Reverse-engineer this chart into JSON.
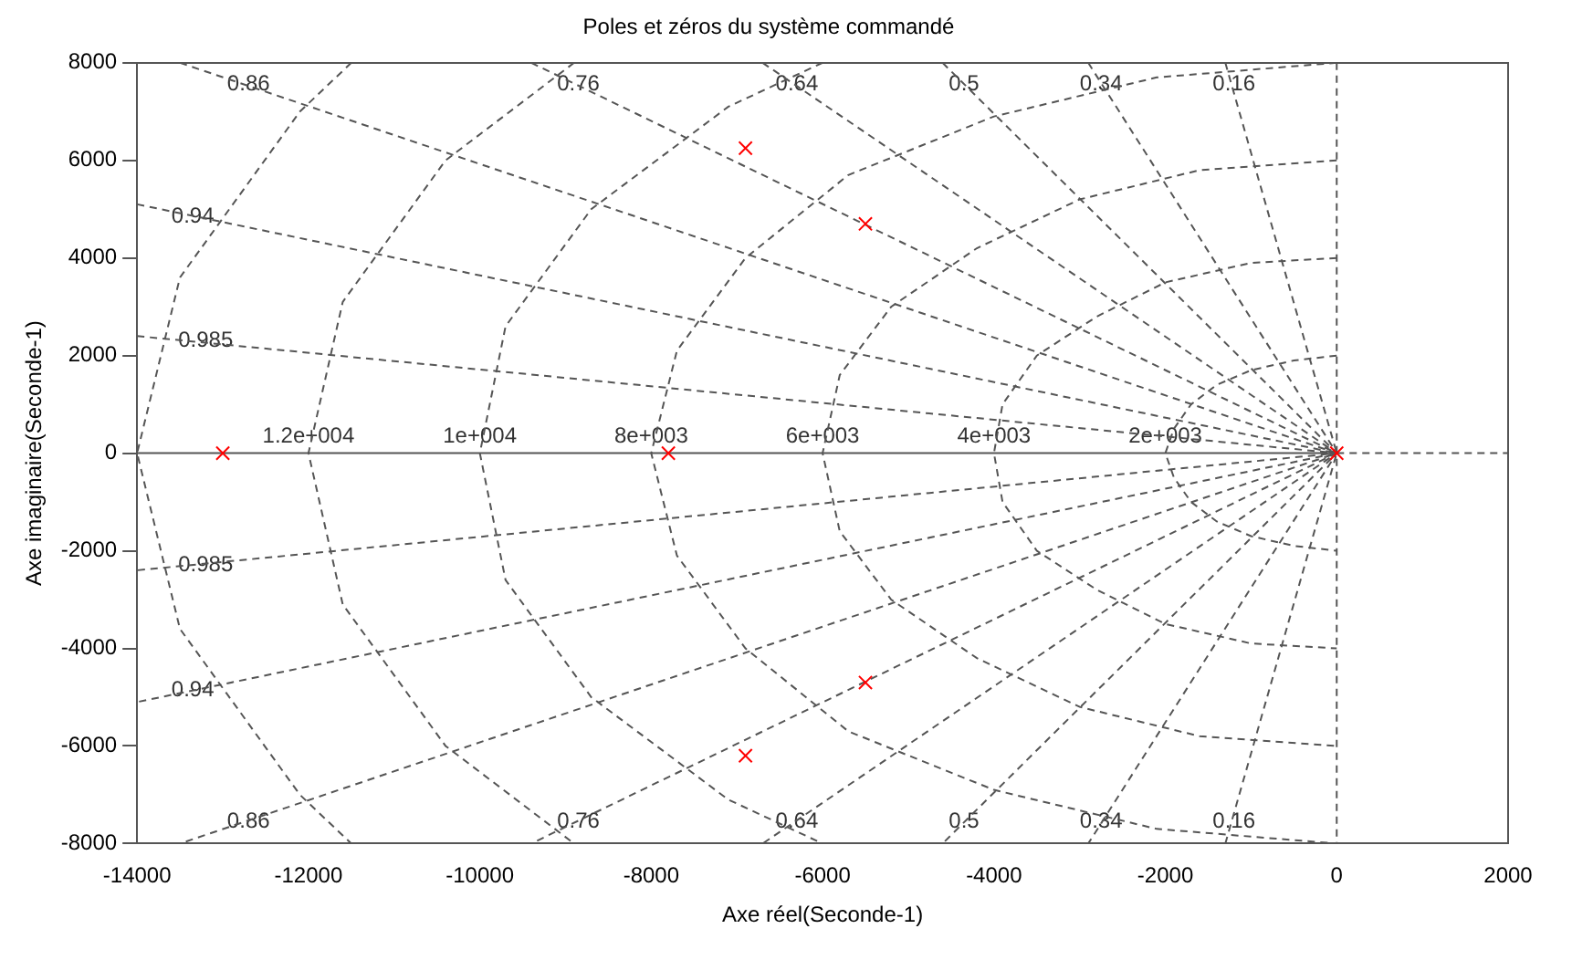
{
  "chart_data": {
    "type": "scatter",
    "title": "Poles et zéros du système commandé",
    "xlabel": "Axe réel(Seconde-1)",
    "ylabel": "Axe imaginaire(Seconde-1)",
    "xlim": [
      -14000,
      2000
    ],
    "xticks": [
      -14000,
      -12000,
      -10000,
      -8000,
      -6000,
      -4000,
      -2000,
      0,
      2000
    ],
    "ylim": [
      -8000,
      8000
    ],
    "yticks": [
      -8000,
      -6000,
      -4000,
      -2000,
      0,
      2000,
      4000,
      6000,
      8000
    ],
    "legend": false,
    "series": [
      {
        "type": "scatter",
        "marker": "cross",
        "color": "#ff0000",
        "x": [
          -13000,
          -7800,
          -6900,
          -6900,
          -5500,
          -5500,
          0
        ],
        "values": [
          0,
          0,
          6250,
          -6200,
          4700,
          -4700,
          0
        ]
      },
      {
        "type": "line",
        "color": "#555555",
        "line_style": "solid",
        "x": [
          -14000,
          0
        ],
        "values": [
          0,
          0
        ]
      },
      {
        "type": "line",
        "color": "#555555",
        "line_style": "dashed",
        "x": [
          0,
          2000
        ],
        "values": [
          0,
          0
        ]
      },
      {
        "type": "line",
        "color": "#555555",
        "line_style": "dashed",
        "x": [
          0,
          0
        ],
        "values": [
          8000,
          -8000
        ]
      },
      {
        "type": "line",
        "color": "#555555",
        "line_style": "dashed",
        "x": [
          -1300,
          0,
          -1300
        ],
        "values": [
          8000,
          0,
          -8000
        ]
      },
      {
        "type": "line",
        "color": "#555555",
        "line_style": "dashed",
        "x": [
          -2900,
          0,
          -2900
        ],
        "values": [
          8000,
          0,
          -8000
        ]
      },
      {
        "type": "line",
        "color": "#555555",
        "line_style": "dashed",
        "x": [
          -4600,
          0,
          -4600
        ],
        "values": [
          8000,
          0,
          -8000
        ]
      },
      {
        "type": "line",
        "color": "#555555",
        "line_style": "dashed",
        "x": [
          -6700,
          0,
          -6700
        ],
        "values": [
          8000,
          0,
          -8000
        ]
      },
      {
        "type": "line",
        "color": "#555555",
        "line_style": "dashed",
        "x": [
          -9400,
          0,
          -9400
        ],
        "values": [
          8000,
          0,
          -8000
        ]
      },
      {
        "type": "line",
        "color": "#555555",
        "line_style": "dashed",
        "x": [
          -13500,
          0,
          -13500
        ],
        "values": [
          8000,
          0,
          -8000
        ]
      },
      {
        "type": "line",
        "color": "#555555",
        "line_style": "dashed",
        "x": [
          -14000,
          0,
          -14000
        ],
        "values": [
          5100,
          0,
          -5100
        ]
      },
      {
        "type": "line",
        "color": "#555555",
        "line_style": "dashed",
        "x": [
          -14000,
          0,
          -14000
        ],
        "values": [
          2400,
          0,
          -2400
        ]
      },
      {
        "type": "line",
        "color": "#555555",
        "line_style": "dashed",
        "x": [
          0,
          -500,
          -1000,
          -1400,
          -1700,
          -1900,
          -2000,
          -1900,
          -1700,
          -1400,
          -1000,
          -500,
          0
        ],
        "values": [
          2000,
          1900,
          1700,
          1400,
          1000,
          500,
          0,
          -500,
          -1000,
          -1400,
          -1700,
          -1900,
          -2000
        ]
      },
      {
        "type": "line",
        "color": "#555555",
        "line_style": "dashed",
        "x": [
          0,
          -1000,
          -2000,
          -2800,
          -3500,
          -3900,
          -4000,
          -3900,
          -3500,
          -2800,
          -2000,
          -1000,
          0
        ],
        "values": [
          4000,
          3900,
          3500,
          2800,
          2000,
          1000,
          0,
          -1000,
          -2000,
          -2800,
          -3500,
          -3900,
          -4000
        ]
      },
      {
        "type": "line",
        "color": "#555555",
        "line_style": "dashed",
        "x": [
          0,
          -1600,
          -3000,
          -4200,
          -5200,
          -5800,
          -6000,
          -5800,
          -5200,
          -4200,
          -3000,
          -1600,
          0
        ],
        "values": [
          6000,
          5800,
          5200,
          4200,
          3000,
          1600,
          0,
          -1600,
          -3000,
          -4200,
          -5200,
          -5800,
          -6000
        ]
      },
      {
        "type": "line",
        "color": "#555555",
        "line_style": "dashed",
        "x": [
          0,
          -2100,
          -4000,
          -5700,
          -6900,
          -7700,
          -8000,
          -7700,
          -6900,
          -5700,
          -4000,
          -2100,
          0
        ],
        "values": [
          8000,
          7700,
          6900,
          5700,
          4000,
          2100,
          0,
          -2100,
          -4000,
          -5700,
          -6900,
          -7700,
          -8000
        ]
      },
      {
        "type": "line",
        "color": "#555555",
        "line_style": "dashed",
        "x": [
          -6000,
          -7100,
          -8700,
          -9700,
          -10000,
          -9700,
          -8700,
          -7100,
          -6000
        ],
        "values": [
          8000,
          7100,
          5000,
          2600,
          0,
          -2600,
          -5000,
          -7100,
          -8000
        ]
      },
      {
        "type": "line",
        "color": "#555555",
        "line_style": "dashed",
        "x": [
          -8900,
          -10400,
          -11600,
          -12000,
          -11600,
          -10400,
          -8900
        ],
        "values": [
          8000,
          6000,
          3100,
          0,
          -3100,
          -6000,
          -8000
        ]
      },
      {
        "type": "line",
        "color": "#555555",
        "line_style": "dashed",
        "x": [
          -11500,
          -12100,
          -13500,
          -14000,
          -13500,
          -12100,
          -11500
        ],
        "values": [
          8000,
          7000,
          3600,
          0,
          -3600,
          -7000,
          -8000
        ]
      }
    ],
    "annotations": [
      {
        "text": "0.86",
        "x": -12700,
        "y": 7550
      },
      {
        "text": "0.76",
        "x": -8850,
        "y": 7550
      },
      {
        "text": "0.64",
        "x": -6300,
        "y": 7550
      },
      {
        "text": "0.5",
        "x": -4350,
        "y": 7550
      },
      {
        "text": "0.34",
        "x": -2750,
        "y": 7550
      },
      {
        "text": "0.16",
        "x": -1200,
        "y": 7550
      },
      {
        "text": "0.94",
        "x": -13350,
        "y": 4850
      },
      {
        "text": "0.985",
        "x": -13200,
        "y": 2300
      },
      {
        "text": "0.86",
        "x": -12700,
        "y": -7550
      },
      {
        "text": "0.76",
        "x": -8850,
        "y": -7550
      },
      {
        "text": "0.64",
        "x": -6300,
        "y": -7550
      },
      {
        "text": "0.5",
        "x": -4350,
        "y": -7550
      },
      {
        "text": "0.34",
        "x": -2750,
        "y": -7550
      },
      {
        "text": "0.16",
        "x": -1200,
        "y": -7550
      },
      {
        "text": "0.94",
        "x": -13350,
        "y": -4850
      },
      {
        "text": "0.985",
        "x": -13200,
        "y": -2300
      },
      {
        "text": "1.2e+004",
        "x": -12000,
        "y": 350
      },
      {
        "text": "1e+004",
        "x": -10000,
        "y": 350
      },
      {
        "text": "8e+003",
        "x": -8000,
        "y": 350
      },
      {
        "text": "6e+003",
        "x": -6000,
        "y": 350
      },
      {
        "text": "4e+003",
        "x": -4000,
        "y": 350
      },
      {
        "text": "2e+003",
        "x": -2000,
        "y": 350
      }
    ]
  }
}
